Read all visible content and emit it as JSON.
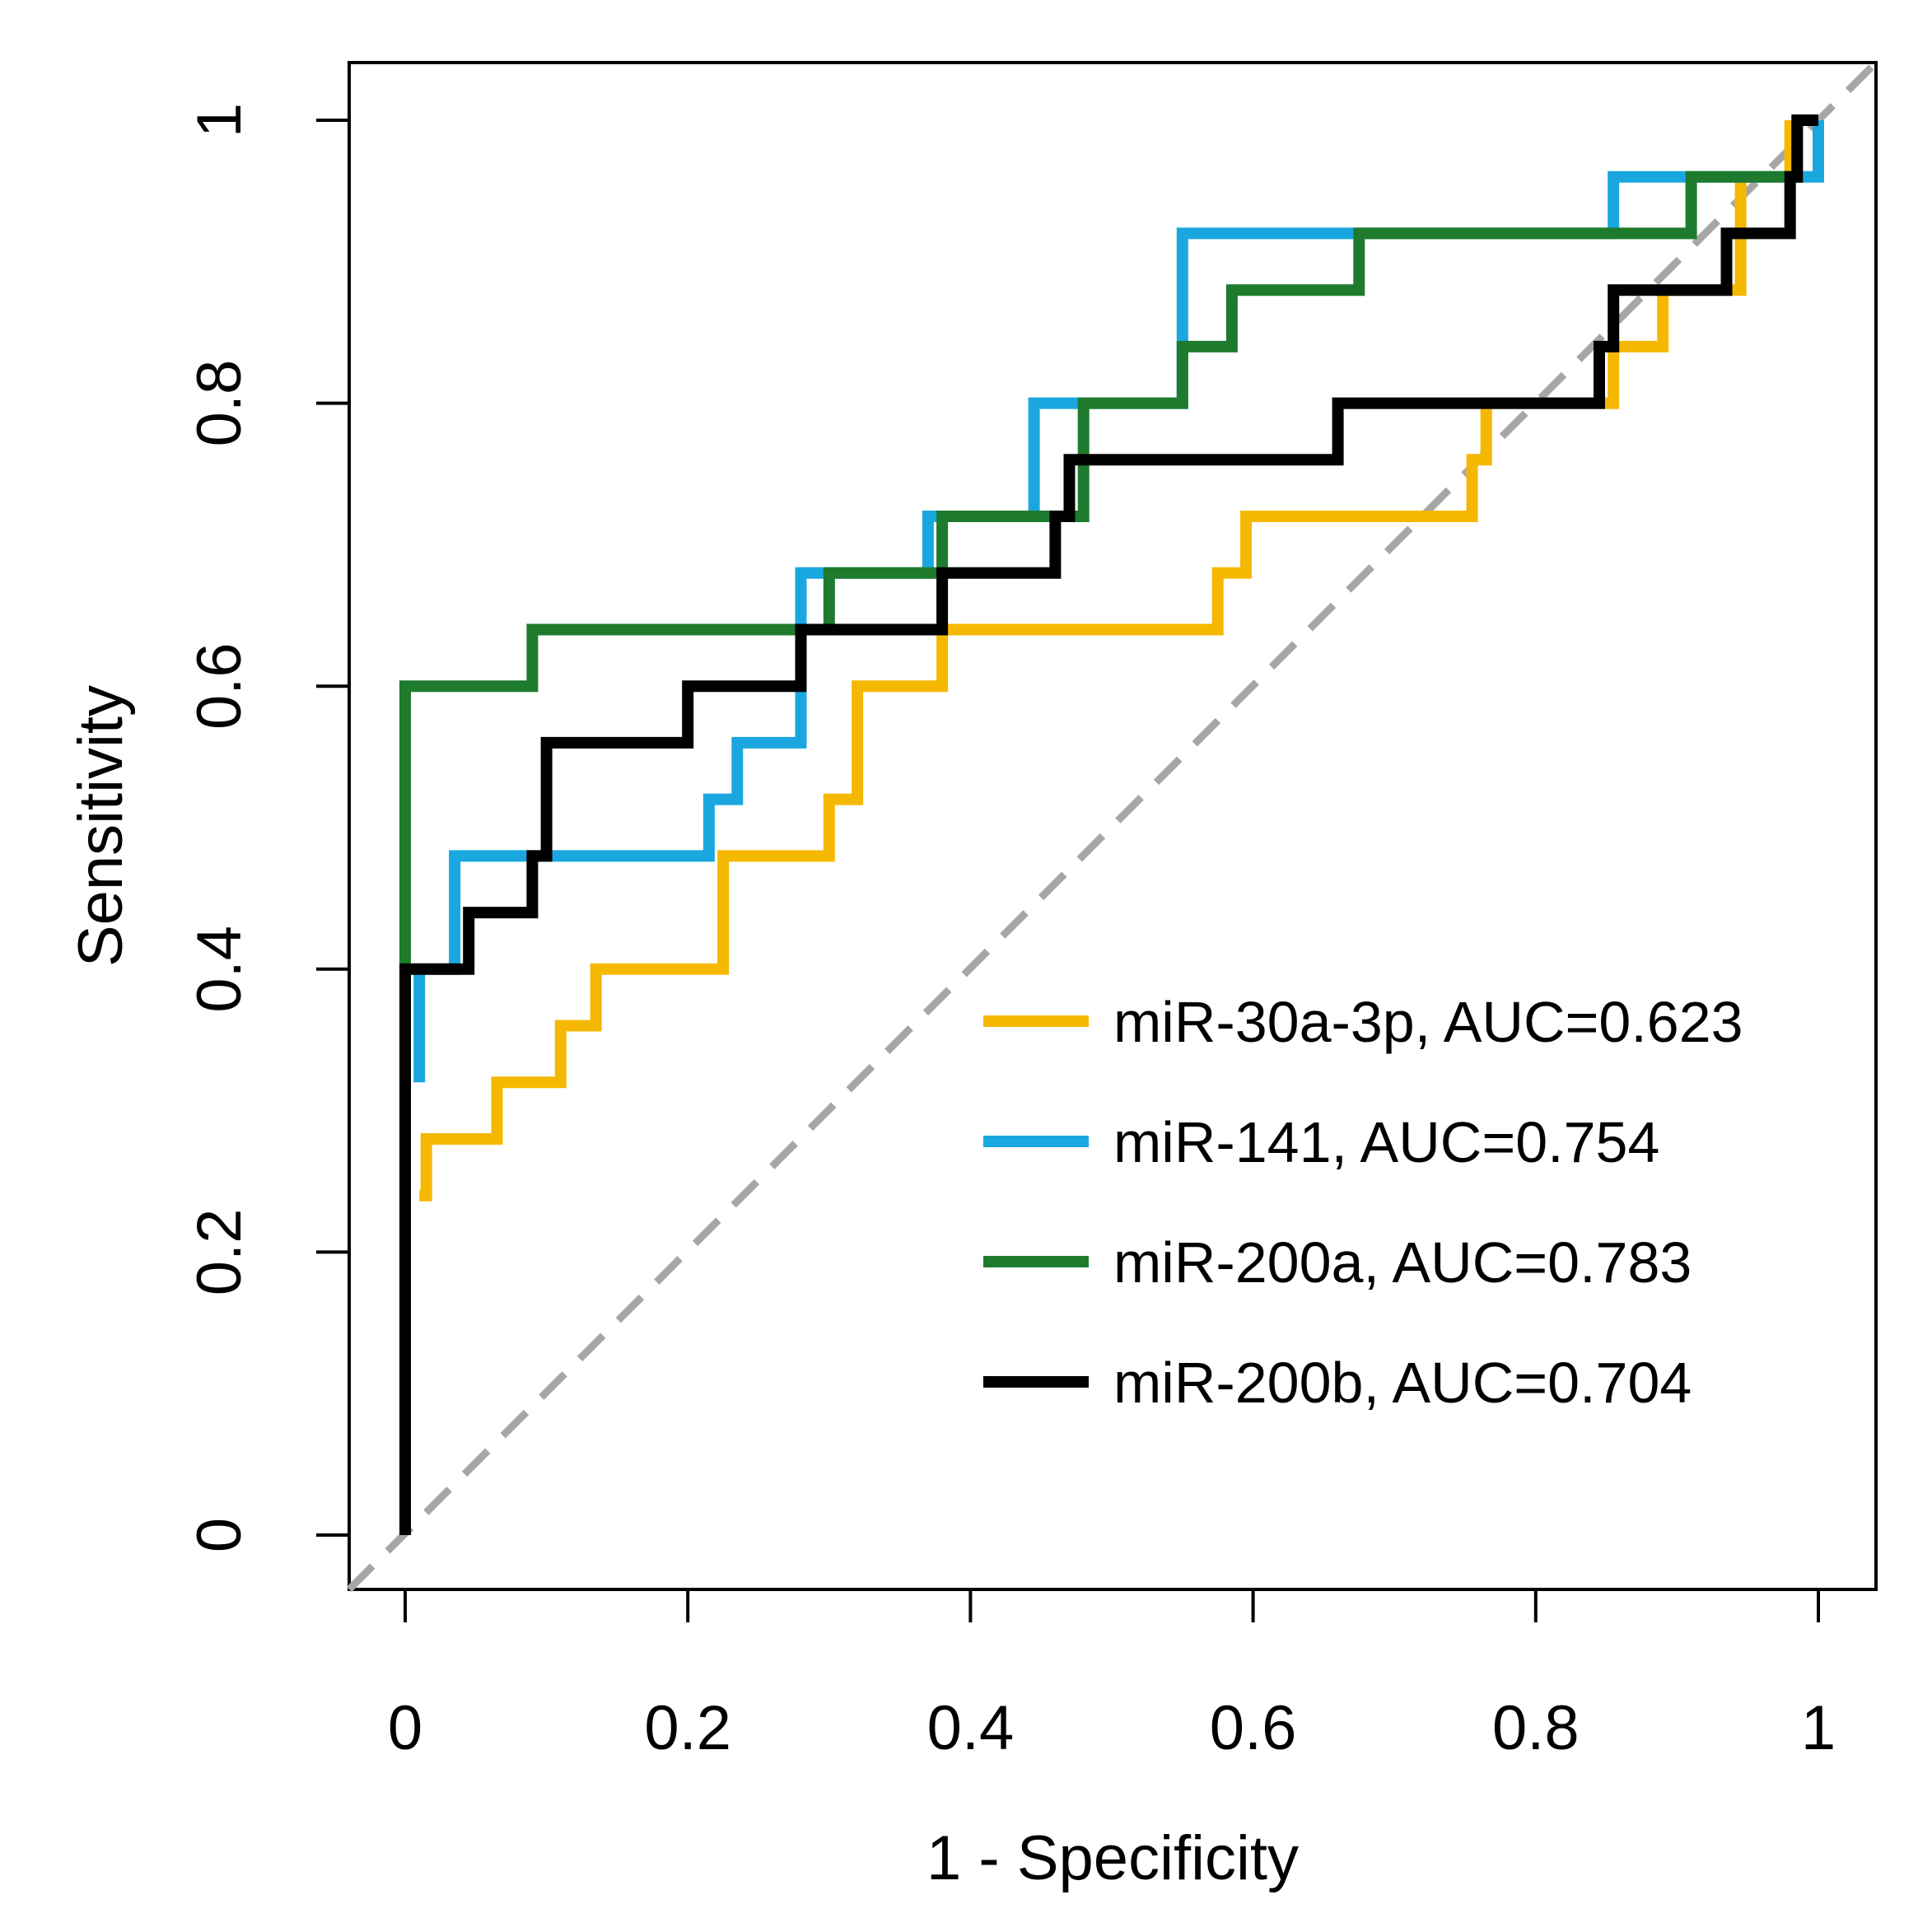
{
  "chart_data": {
    "type": "line",
    "xlabel": "1 - Specificity",
    "ylabel": "Sensitivity",
    "xlim": [
      0,
      1
    ],
    "ylim": [
      0,
      1
    ],
    "xticks": [
      "0",
      "0.2",
      "0.4",
      "0.6",
      "0.8",
      "1"
    ],
    "yticks": [
      "0",
      "0.2",
      "0.4",
      "0.6",
      "0.8",
      "1"
    ],
    "grid": false,
    "legend_position": "bottom-right",
    "reference_line": {
      "style": "dashed",
      "color": "#A6A6A6",
      "x": [
        0,
        1
      ],
      "y": [
        0,
        1
      ]
    },
    "series": [
      {
        "name": "miR-30a-3p, AUC=0.623",
        "color": "#F5B800",
        "x": [
          0.01,
          0.01,
          0.015,
          0.015,
          0.065,
          0.065,
          0.11,
          0.11,
          0.135,
          0.135,
          0.225,
          0.225,
          0.3,
          0.3,
          0.32,
          0.32,
          0.38,
          0.38,
          0.575,
          0.575,
          0.595,
          0.595,
          0.755,
          0.755,
          0.765,
          0.765,
          0.855,
          0.855,
          0.89,
          0.89,
          0.945,
          0.945,
          0.98,
          0.98
        ],
        "y": [
          0.24,
          0.24,
          0.24,
          0.28,
          0.28,
          0.32,
          0.32,
          0.36,
          0.36,
          0.4,
          0.4,
          0.48,
          0.48,
          0.52,
          0.52,
          0.6,
          0.6,
          0.64,
          0.64,
          0.68,
          0.68,
          0.72,
          0.72,
          0.76,
          0.76,
          0.8,
          0.8,
          0.84,
          0.84,
          0.88,
          0.88,
          0.96,
          0.96,
          1.0
        ]
      },
      {
        "name": "miR-141, AUC=0.754",
        "color": "#1AA7E0",
        "x": [
          0.01,
          0.01,
          0.035,
          0.035,
          0.215,
          0.215,
          0.235,
          0.235,
          0.28,
          0.28,
          0.37,
          0.37,
          0.445,
          0.445,
          0.55,
          0.55,
          0.855,
          0.855,
          1.0,
          1.0
        ],
        "y": [
          0.32,
          0.4,
          0.4,
          0.48,
          0.48,
          0.52,
          0.52,
          0.56,
          0.56,
          0.68,
          0.68,
          0.72,
          0.72,
          0.8,
          0.8,
          0.92,
          0.92,
          0.96,
          0.96,
          1.0
        ]
      },
      {
        "name": "miR-200a, AUC=0.783",
        "color": "#1E7B2E",
        "x": [
          0.0,
          0.0,
          0.09,
          0.09,
          0.3,
          0.3,
          0.38,
          0.38,
          0.48,
          0.48,
          0.55,
          0.55,
          0.585,
          0.585,
          0.675,
          0.675,
          0.91,
          0.91,
          0.985,
          0.985
        ],
        "y": [
          0.4,
          0.6,
          0.6,
          0.64,
          0.64,
          0.68,
          0.68,
          0.72,
          0.72,
          0.8,
          0.8,
          0.84,
          0.84,
          0.88,
          0.88,
          0.92,
          0.92,
          0.96,
          0.96,
          1.0
        ]
      },
      {
        "name": "miR-200b, AUC=0.704",
        "color": "#000000",
        "x": [
          0.0,
          0.0,
          0.045,
          0.045,
          0.09,
          0.09,
          0.1,
          0.1,
          0.2,
          0.2,
          0.28,
          0.28,
          0.38,
          0.38,
          0.46,
          0.46,
          0.47,
          0.47,
          0.66,
          0.66,
          0.845,
          0.845,
          0.855,
          0.855,
          0.935,
          0.935,
          0.98,
          0.98,
          0.985,
          0.985,
          1.0
        ],
        "y": [
          0.0,
          0.4,
          0.4,
          0.44,
          0.44,
          0.48,
          0.48,
          0.56,
          0.56,
          0.6,
          0.6,
          0.64,
          0.64,
          0.68,
          0.68,
          0.72,
          0.72,
          0.76,
          0.76,
          0.8,
          0.8,
          0.84,
          0.84,
          0.88,
          0.88,
          0.92,
          0.92,
          0.96,
          0.96,
          1.0,
          1.0
        ]
      }
    ]
  }
}
